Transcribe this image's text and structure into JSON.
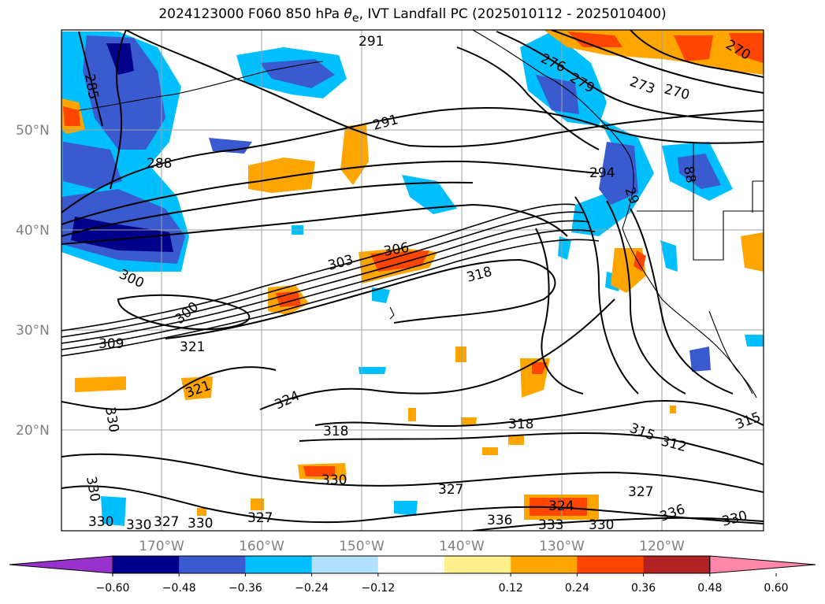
{
  "title": "2024123000 F060 850 hPa θe, IVT Landfall PC (2025010112 - 2025010400)",
  "title_parts": {
    "prefix": "2024123000 F060 850 hPa ",
    "theta": "θ",
    "subscript": "e",
    "suffix": ", IVT Landfall PC (2025010112 - 2025010400)"
  },
  "map": {
    "lat_labels": [
      "50°N",
      "40°N",
      "30°N",
      "20°N"
    ],
    "lon_labels": [
      "170°W",
      "160°W",
      "150°W",
      "140°W",
      "130°W",
      "120°W"
    ],
    "grid": true
  },
  "colorbar": {
    "ticks": [
      "−0.60",
      "−0.48",
      "−0.36",
      "−0.24",
      "−0.12",
      "0.12",
      "0.24",
      "0.36",
      "0.48",
      "0.60"
    ],
    "colors": [
      "#9932cc",
      "#00008b",
      "#3a5bd0",
      "#00bfff",
      "#b0e2ff",
      "#ffffff",
      "#fff08c",
      "#ffa500",
      "#ff4500",
      "#b22222",
      "#ff88aa"
    ],
    "extend": "both"
  },
  "contour_labels": [
    {
      "text": "291"
    },
    {
      "text": "276"
    },
    {
      "text": "270"
    },
    {
      "text": "279"
    },
    {
      "text": "273"
    },
    {
      "text": "270"
    },
    {
      "text": "285"
    },
    {
      "text": "291"
    },
    {
      "text": "288"
    },
    {
      "text": "294"
    },
    {
      "text": "29"
    },
    {
      "text": "88"
    },
    {
      "text": "303"
    },
    {
      "text": "306"
    },
    {
      "text": "318"
    },
    {
      "text": "300"
    },
    {
      "text": "300"
    },
    {
      "text": "309"
    },
    {
      "text": "321"
    },
    {
      "text": "321"
    },
    {
      "text": "324"
    },
    {
      "text": "330"
    },
    {
      "text": "318"
    },
    {
      "text": "318"
    },
    {
      "text": "315"
    },
    {
      "text": "312"
    },
    {
      "text": "315"
    },
    {
      "text": "330"
    },
    {
      "text": "330"
    },
    {
      "text": "327"
    },
    {
      "text": "327"
    },
    {
      "text": "324"
    },
    {
      "text": "336"
    },
    {
      "text": "333"
    },
    {
      "text": "330"
    },
    {
      "text": "336"
    },
    {
      "text": "330"
    },
    {
      "text": "327"
    },
    {
      "text": "330"
    },
    {
      "text": "327"
    },
    {
      "text": "330"
    },
    {
      "text": "330"
    }
  ]
}
